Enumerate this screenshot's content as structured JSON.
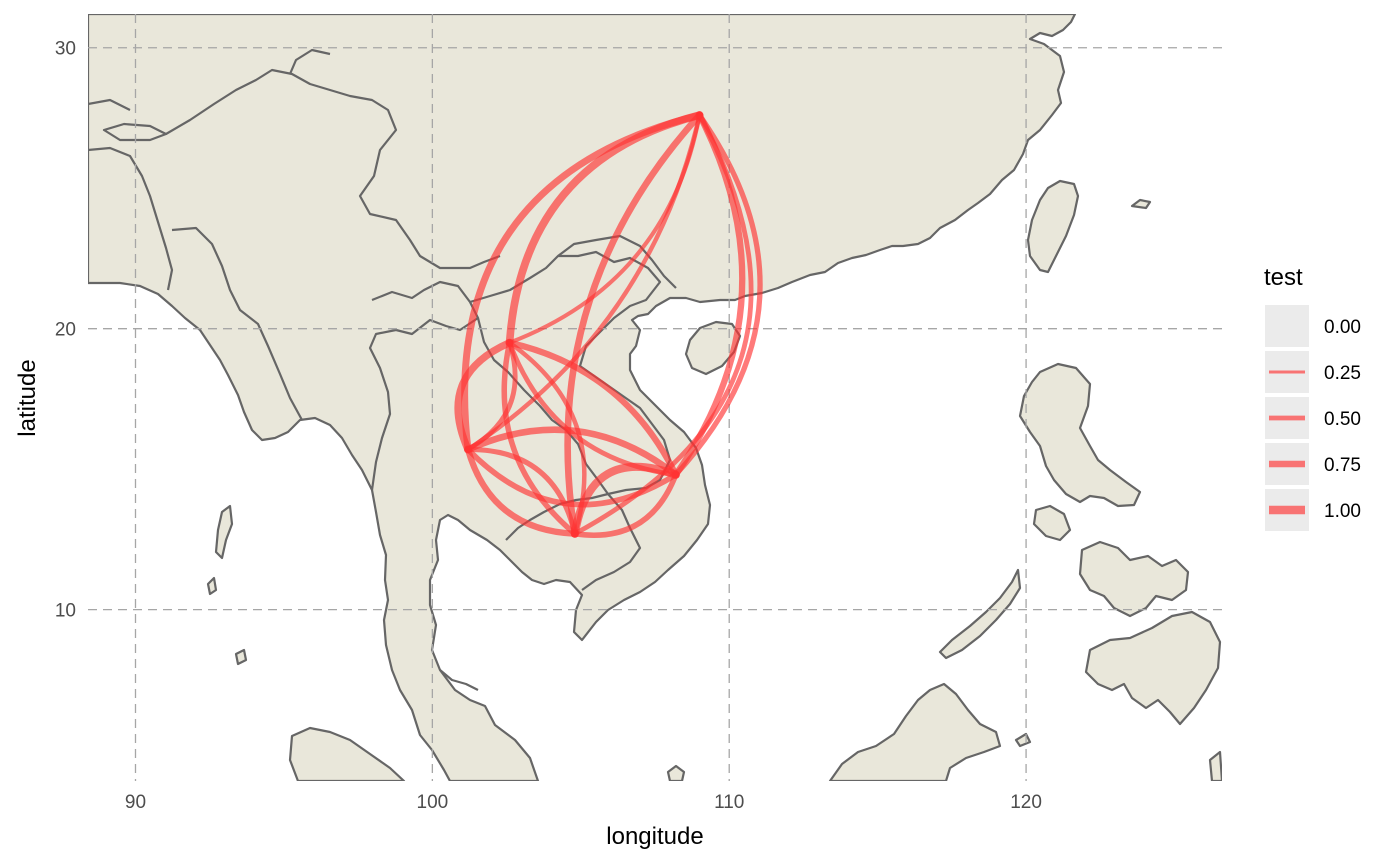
{
  "map": {
    "xlabel": "longitude",
    "ylabel": "latitude",
    "xlim": [
      88.4,
      126.6
    ],
    "ylim": [
      3.9,
      31.2
    ],
    "x_ticks": [
      {
        "value": 90,
        "label": "90"
      },
      {
        "value": 100,
        "label": "100"
      },
      {
        "value": 110,
        "label": "110"
      },
      {
        "value": 120,
        "label": "120"
      }
    ],
    "y_ticks": [
      {
        "value": 10,
        "label": "10"
      },
      {
        "value": 20,
        "label": "20"
      },
      {
        "value": 30,
        "label": "30"
      }
    ],
    "grid": true,
    "grid_style": "dashed",
    "land_color": "#e9e7da",
    "border_color": "#666666",
    "sea_color": "#ffffff",
    "flow_color": "#ff3333",
    "flow_opacity": 0.65
  },
  "legend": {
    "title": "test",
    "position": "right",
    "items": [
      {
        "label": "0.00",
        "value": 0.0
      },
      {
        "label": "0.25",
        "value": 0.25
      },
      {
        "label": "0.50",
        "value": 0.5
      },
      {
        "label": "0.75",
        "value": 0.75
      },
      {
        "label": "1.00",
        "value": 1.0
      }
    ]
  },
  "nodes": [
    {
      "id": "A",
      "lon": 109.0,
      "lat": 27.6
    },
    {
      "id": "B",
      "lon": 102.6,
      "lat": 19.5
    },
    {
      "id": "C",
      "lon": 101.2,
      "lat": 15.7
    },
    {
      "id": "D",
      "lon": 108.2,
      "lat": 14.8
    },
    {
      "id": "E",
      "lon": 104.8,
      "lat": 12.7
    }
  ],
  "flows": [
    {
      "from": "A",
      "to": "B",
      "test": 0.9,
      "curvature": 0.18
    },
    {
      "from": "A",
      "to": "C",
      "test": 0.8,
      "curvature": 0.22
    },
    {
      "from": "A",
      "to": "D",
      "test": 0.7,
      "curvature": -0.15
    },
    {
      "from": "A",
      "to": "E",
      "test": 0.75,
      "curvature": 0.12
    },
    {
      "from": "D",
      "to": "A",
      "test": 0.55,
      "curvature": 0.2
    },
    {
      "from": "E",
      "to": "A",
      "test": 0.5,
      "curvature": 0.25
    },
    {
      "from": "C",
      "to": "A",
      "test": 0.45,
      "curvature": 0.1
    },
    {
      "from": "B",
      "to": "A",
      "test": 0.4,
      "curvature": 0.14
    },
    {
      "from": "B",
      "to": "C",
      "test": 0.85,
      "curvature": 0.25
    },
    {
      "from": "C",
      "to": "B",
      "test": 0.5,
      "curvature": 0.2
    },
    {
      "from": "B",
      "to": "D",
      "test": 0.7,
      "curvature": -0.12
    },
    {
      "from": "D",
      "to": "B",
      "test": 0.5,
      "curvature": -0.15
    },
    {
      "from": "B",
      "to": "E",
      "test": 0.6,
      "curvature": 0.15
    },
    {
      "from": "E",
      "to": "B",
      "test": 0.45,
      "curvature": 0.18
    },
    {
      "from": "C",
      "to": "D",
      "test": 0.75,
      "curvature": -0.15
    },
    {
      "from": "D",
      "to": "C",
      "test": 0.6,
      "curvature": -0.2
    },
    {
      "from": "C",
      "to": "E",
      "test": 0.7,
      "curvature": 0.18
    },
    {
      "from": "E",
      "to": "C",
      "test": 0.55,
      "curvature": 0.2
    },
    {
      "from": "D",
      "to": "E",
      "test": 0.95,
      "curvature": 0.3
    },
    {
      "from": "E",
      "to": "D",
      "test": 0.6,
      "curvature": 0.2
    }
  ]
}
